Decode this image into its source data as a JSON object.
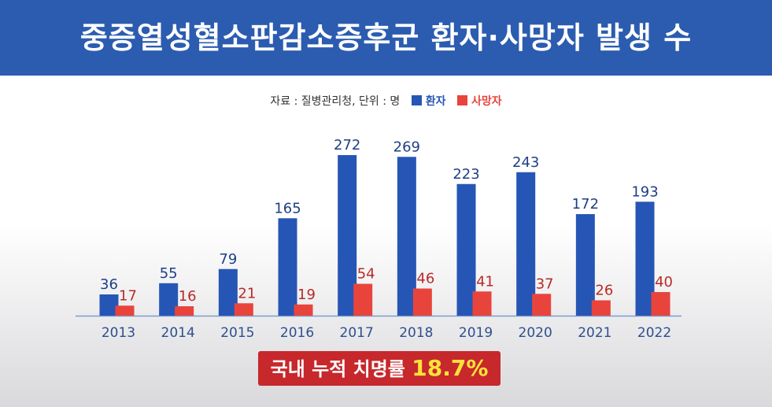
{
  "title": "중증열성혈소판감소증후군 환자·사망자 발생 수",
  "legend": {
    "source": "자료 : 질병관리청, 단위 : 명",
    "series_patients": "환자",
    "series_deaths": "사망자"
  },
  "footer": {
    "label": "국내 누적 치명률",
    "value": "18.7%"
  },
  "colors": {
    "patients": "#2656b5",
    "deaths": "#e8443c",
    "title_bg": "#2b5cb0",
    "footer_bg": "#c6282c",
    "footer_value": "#ffe23a"
  },
  "chart_data": {
    "type": "bar",
    "title": "중증열성혈소판감소증후군 환자·사망자 발생 수",
    "categories": [
      "2013",
      "2014",
      "2015",
      "2016",
      "2017",
      "2018",
      "2019",
      "2020",
      "2021",
      "2022"
    ],
    "series": [
      {
        "name": "환자",
        "values": [
          36,
          55,
          79,
          165,
          272,
          269,
          223,
          243,
          172,
          193
        ]
      },
      {
        "name": "사망자",
        "values": [
          17,
          16,
          21,
          19,
          54,
          46,
          41,
          37,
          26,
          40
        ]
      }
    ],
    "ylim": [
      0,
      272
    ],
    "grid": false,
    "legend_position": "top-center",
    "xlabel": "",
    "ylabel": ""
  }
}
